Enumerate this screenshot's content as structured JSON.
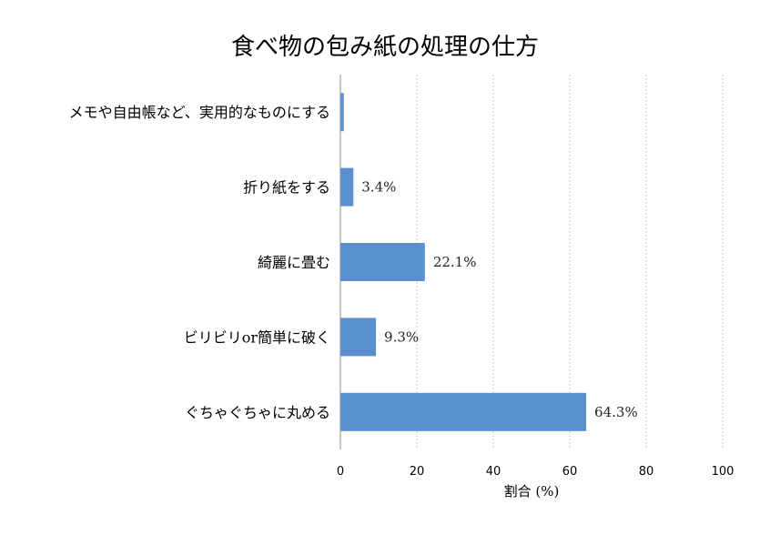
{
  "chart_data": {
    "type": "bar",
    "orientation": "horizontal",
    "title": "食べ物の包み紙の処理の仕方",
    "xlabel": "割合 (%)",
    "ylabel": "",
    "xlim": [
      0,
      100
    ],
    "xticks": [
      "0",
      "20",
      "40",
      "60",
      "80",
      "100"
    ],
    "grid": true,
    "bar_color": "#5a8fd0",
    "categories": [
      "メモや自由帳など、実用的なものにする",
      "折り紙をする",
      "綺麗に畳む",
      "ビリビリor簡単に破く",
      "ぐちゃぐちゃに丸める"
    ],
    "values": [
      0.9,
      3.4,
      22.1,
      9.3,
      64.3
    ],
    "value_labels": [
      "",
      "3.4%",
      "22.1%",
      "9.3%",
      "64.3%"
    ]
  }
}
